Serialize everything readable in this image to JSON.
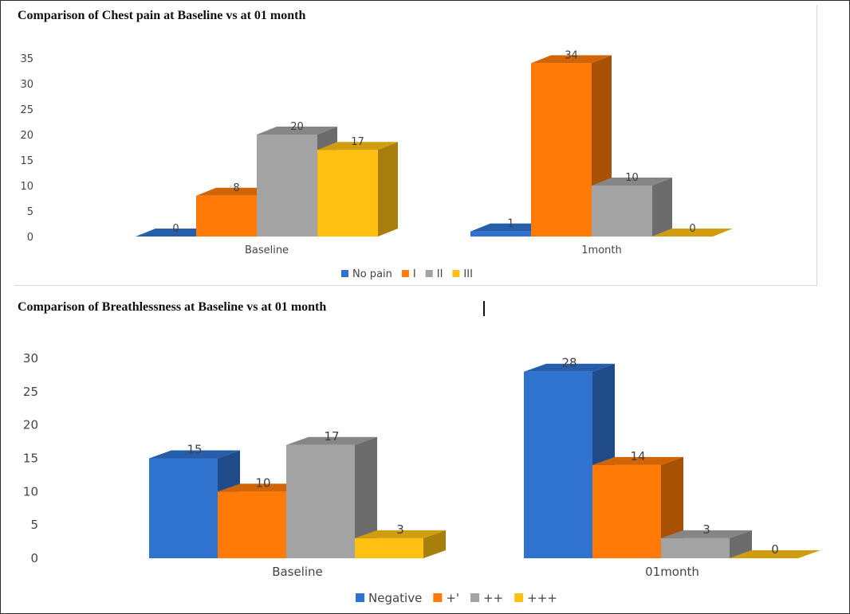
{
  "colors": {
    "blue": "#2f73cf",
    "orange": "#ff7a06",
    "gray": "#a3a3a3",
    "yellow": "#ffc012"
  },
  "chart_data": [
    {
      "type": "bar",
      "title": "Comparison of Chest pain at Baseline vs at 01 month",
      "categories": [
        "Baseline",
        "1month"
      ],
      "series": [
        {
          "name": "No pain",
          "values": [
            0,
            1
          ]
        },
        {
          "name": "I",
          "values": [
            8,
            34
          ]
        },
        {
          "name": "II",
          "values": [
            20,
            10
          ]
        },
        {
          "name": "III",
          "values": [
            17,
            0
          ]
        }
      ],
      "yticks": [
        "0",
        "5",
        "10",
        "15",
        "20",
        "25",
        "30",
        "35"
      ],
      "ylim": [
        0,
        35
      ],
      "legend_position": "bottom",
      "grid": false,
      "style": "3d-clustered-column"
    },
    {
      "type": "bar",
      "title": "Comparison of Breathlessness at Baseline vs at 01 month",
      "categories": [
        "Baseline",
        "01month"
      ],
      "series": [
        {
          "name": "Negative",
          "values": [
            15,
            28
          ]
        },
        {
          "name": "+'",
          "values": [
            10,
            14
          ]
        },
        {
          "name": "++",
          "values": [
            17,
            3
          ]
        },
        {
          "name": "+++",
          "values": [
            3,
            0
          ]
        }
      ],
      "yticks": [
        "0",
        "5",
        "10",
        "15",
        "20",
        "25",
        "30"
      ],
      "ylim": [
        0,
        30
      ],
      "legend_position": "bottom",
      "grid": false,
      "style": "3d-clustered-column"
    }
  ]
}
